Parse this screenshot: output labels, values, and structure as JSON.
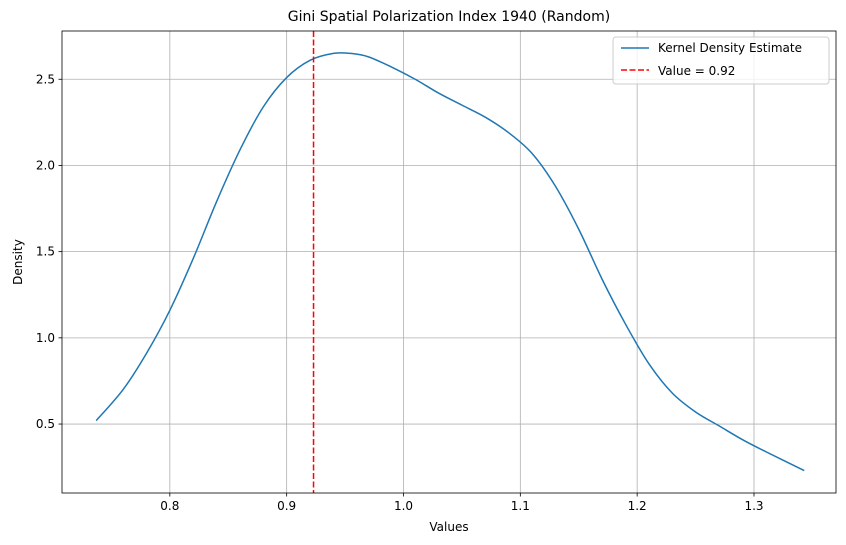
{
  "chart_data": {
    "type": "line",
    "title": "Gini Spatial Polarization Index 1940 (Random)",
    "xlabel": "Values",
    "ylabel": "Density",
    "xlim": [
      0.7077,
      1.3702
    ],
    "ylim": [
      0.1,
      2.78
    ],
    "xticks": [
      0.8,
      0.9,
      1.0,
      1.1,
      1.2,
      1.3
    ],
    "xtick_labels": [
      "0.8",
      "0.9",
      "1.0",
      "1.1",
      "1.2",
      "1.3"
    ],
    "yticks": [
      0.5,
      1.0,
      1.5,
      2.0,
      2.5
    ],
    "ytick_labels": [
      "0.5",
      "1.0",
      "1.5",
      "2.0",
      "2.5"
    ],
    "grid": true,
    "legend_position": "top-right",
    "series": [
      {
        "name": "Kernel Density Estimate",
        "color": "#1f77b4",
        "x": [
          0.737,
          0.76,
          0.78,
          0.8,
          0.82,
          0.84,
          0.86,
          0.88,
          0.9,
          0.92,
          0.94,
          0.955,
          0.97,
          0.99,
          1.01,
          1.03,
          1.05,
          1.07,
          1.09,
          1.11,
          1.13,
          1.15,
          1.17,
          1.19,
          1.21,
          1.23,
          1.25,
          1.27,
          1.29,
          1.31,
          1.343
        ],
        "y": [
          0.52,
          0.7,
          0.91,
          1.16,
          1.46,
          1.79,
          2.09,
          2.34,
          2.51,
          2.61,
          2.65,
          2.65,
          2.63,
          2.57,
          2.5,
          2.42,
          2.35,
          2.28,
          2.19,
          2.07,
          1.88,
          1.63,
          1.34,
          1.08,
          0.85,
          0.68,
          0.57,
          0.49,
          0.41,
          0.34,
          0.23
        ]
      }
    ],
    "vline": {
      "name": "Value = 0.92",
      "x": 0.923,
      "color": "#ff0000",
      "style": "dashed"
    }
  }
}
